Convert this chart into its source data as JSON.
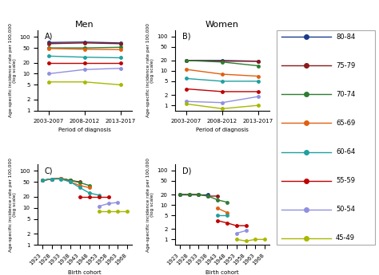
{
  "title_men": "Men",
  "title_women": "Women",
  "period_labels": [
    "2003-2007",
    "2008-2012",
    "2013-2017"
  ],
  "age_groups": [
    "80-84",
    "75-79",
    "70-74",
    "65-69",
    "60-64",
    "55-59",
    "50-54",
    "45-49"
  ],
  "colors": {
    "80-84": "#1a3a8c",
    "75-79": "#8b1a1a",
    "70-74": "#2e7d32",
    "65-69": "#e06010",
    "60-64": "#20a0a0",
    "55-59": "#c00000",
    "50-54": "#9090e0",
    "45-49": "#a8b800"
  },
  "panel_A": {
    "data": {
      "80-84": [
        70,
        72,
        68
      ],
      "75-79": [
        65,
        68,
        65
      ],
      "70-74": [
        50,
        50,
        52
      ],
      "65-69": [
        48,
        46,
        45
      ],
      "60-64": [
        30,
        28,
        27
      ],
      "55-59": [
        20,
        20,
        20
      ],
      "50-54": [
        10,
        13,
        14
      ],
      "45-49": [
        6,
        6,
        5
      ]
    },
    "ylim": [
      1,
      150
    ],
    "yticks": [
      1,
      2,
      5,
      10,
      20,
      50,
      100
    ],
    "label": "A)"
  },
  "panel_B": {
    "data": {
      "80-84": [
        20,
        20,
        19
      ],
      "75-79": [
        20,
        19,
        19
      ],
      "70-74": [
        20,
        18,
        14
      ],
      "65-69": [
        11,
        8,
        7
      ],
      "60-64": [
        6,
        5,
        5
      ],
      "55-59": [
        3,
        2.5,
        2.5
      ],
      "50-54": [
        1.3,
        1.2,
        1.8
      ],
      "45-49": [
        1.1,
        0.8,
        1.0
      ]
    },
    "ylim": [
      0.7,
      150
    ],
    "yticks": [
      1,
      2,
      5,
      10,
      20,
      50,
      100
    ],
    "label": "B)"
  },
  "panel_C": {
    "data": {
      "80-84": [
        55,
        60,
        62,
        55,
        null,
        null,
        null,
        null,
        null,
        null
      ],
      "75-79": [
        55,
        60,
        62,
        55,
        50,
        null,
        null,
        null,
        null,
        null
      ],
      "70-74": [
        55,
        60,
        62,
        55,
        48,
        40,
        null,
        null,
        null,
        null
      ],
      "65-69": [
        55,
        60,
        62,
        50,
        40,
        35,
        null,
        null,
        null,
        null
      ],
      "60-64": [
        55,
        60,
        60,
        50,
        35,
        25,
        22,
        null,
        null,
        null
      ],
      "55-59": [
        null,
        null,
        null,
        null,
        20,
        20,
        20,
        20,
        null,
        null
      ],
      "50-54": [
        null,
        null,
        null,
        null,
        null,
        null,
        11,
        13,
        14,
        null
      ],
      "45-49": [
        null,
        null,
        null,
        null,
        null,
        null,
        8,
        8,
        8,
        8
      ]
    },
    "birth_x": [
      1923,
      1928,
      1933,
      1938,
      1943,
      1948,
      1953,
      1958,
      1963,
      1968
    ],
    "ylim": [
      1,
      150
    ],
    "yticks": [
      1,
      2,
      5,
      10,
      20,
      50,
      100
    ],
    "label": "C)"
  },
  "panel_D": {
    "data": {
      "80-84": [
        20,
        20,
        20,
        20,
        null,
        null,
        null,
        null,
        null,
        null
      ],
      "75-79": [
        20,
        20,
        20,
        18,
        18,
        null,
        null,
        null,
        null,
        null
      ],
      "70-74": [
        20,
        20,
        20,
        18,
        14,
        12,
        null,
        null,
        null,
        null
      ],
      "65-69": [
        null,
        null,
        null,
        null,
        8,
        6,
        null,
        null,
        null,
        null
      ],
      "60-64": [
        null,
        null,
        null,
        null,
        5,
        5,
        null,
        null,
        null,
        null
      ],
      "55-59": [
        null,
        null,
        null,
        null,
        3.5,
        3,
        2.5,
        2.5,
        null,
        null
      ],
      "50-54": [
        null,
        null,
        null,
        null,
        null,
        null,
        1.5,
        1.8,
        null,
        null
      ],
      "45-49": [
        null,
        null,
        null,
        null,
        null,
        null,
        1.0,
        0.9,
        1.0,
        1.0
      ]
    },
    "birth_x": [
      1923,
      1928,
      1933,
      1938,
      1943,
      1948,
      1953,
      1958,
      1963,
      1968
    ],
    "ylim": [
      0.7,
      150
    ],
    "yticks": [
      1,
      2,
      5,
      10,
      20,
      50,
      100
    ],
    "label": "D)"
  },
  "xlabel_period": "Period of diagnosis",
  "xlabel_birth": "Birth cohort",
  "ylabel": "Age-specific incidence rate per 100,000\n(log scale)"
}
